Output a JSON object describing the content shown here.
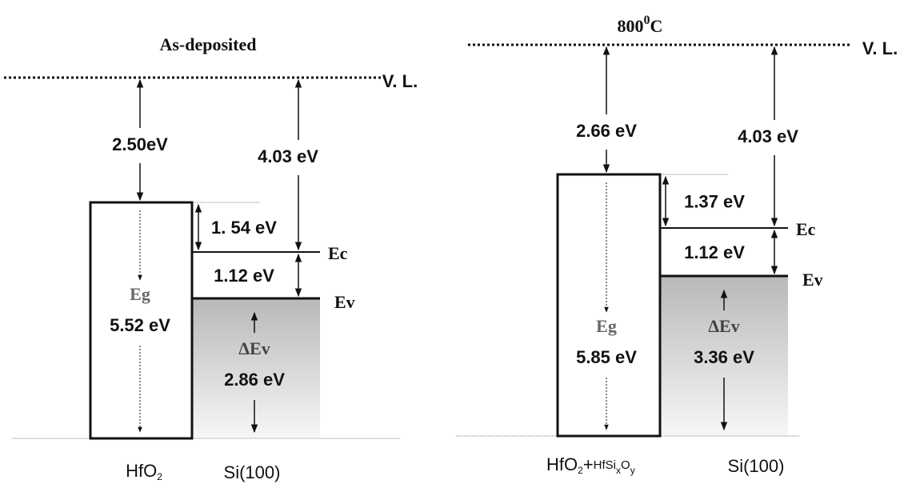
{
  "panels": [
    {
      "title": [
        {
          "text": "As-deposited"
        }
      ],
      "vacuum_level": "V. L.",
      "oxide_barrier": "2.50eV",
      "si_affinity": "4.03 eV",
      "cb_offset": "1. 54 eV",
      "si_gap": "1.12 eV",
      "ec": "Ec",
      "ev": "Ev",
      "eg_label": "Eg",
      "eg": "5.52 eV",
      "dev_label": "ΔEv",
      "dev": "2.86 eV",
      "oxide": [
        {
          "text": "HfO"
        },
        {
          "text": "2",
          "sub": true
        }
      ],
      "substrate": "Si(100)"
    },
    {
      "title": [
        {
          "text": "800"
        },
        {
          "text": "0",
          "sup": true
        },
        {
          "text": "C"
        }
      ],
      "vacuum_level": "V. L.",
      "oxide_barrier": "2.66 eV",
      "si_affinity": "4.03 eV",
      "cb_offset": "1.37 eV",
      "si_gap": "1.12 eV",
      "ec": "Ec",
      "ev": "Ev",
      "eg_label": "Eg",
      "eg": "5.85 eV",
      "dev_label": "ΔEv",
      "dev": "3.36 eV",
      "oxide": [
        {
          "text": "HfO"
        },
        {
          "text": "2",
          "sub": true
        },
        {
          "text": "+"
        },
        {
          "text": "HfSi",
          "small": true
        },
        {
          "text": "x",
          "sub": true
        },
        {
          "text": "O",
          "small": true
        },
        {
          "text": "y",
          "sub": true
        }
      ],
      "substrate": "Si(100)"
    }
  ]
}
